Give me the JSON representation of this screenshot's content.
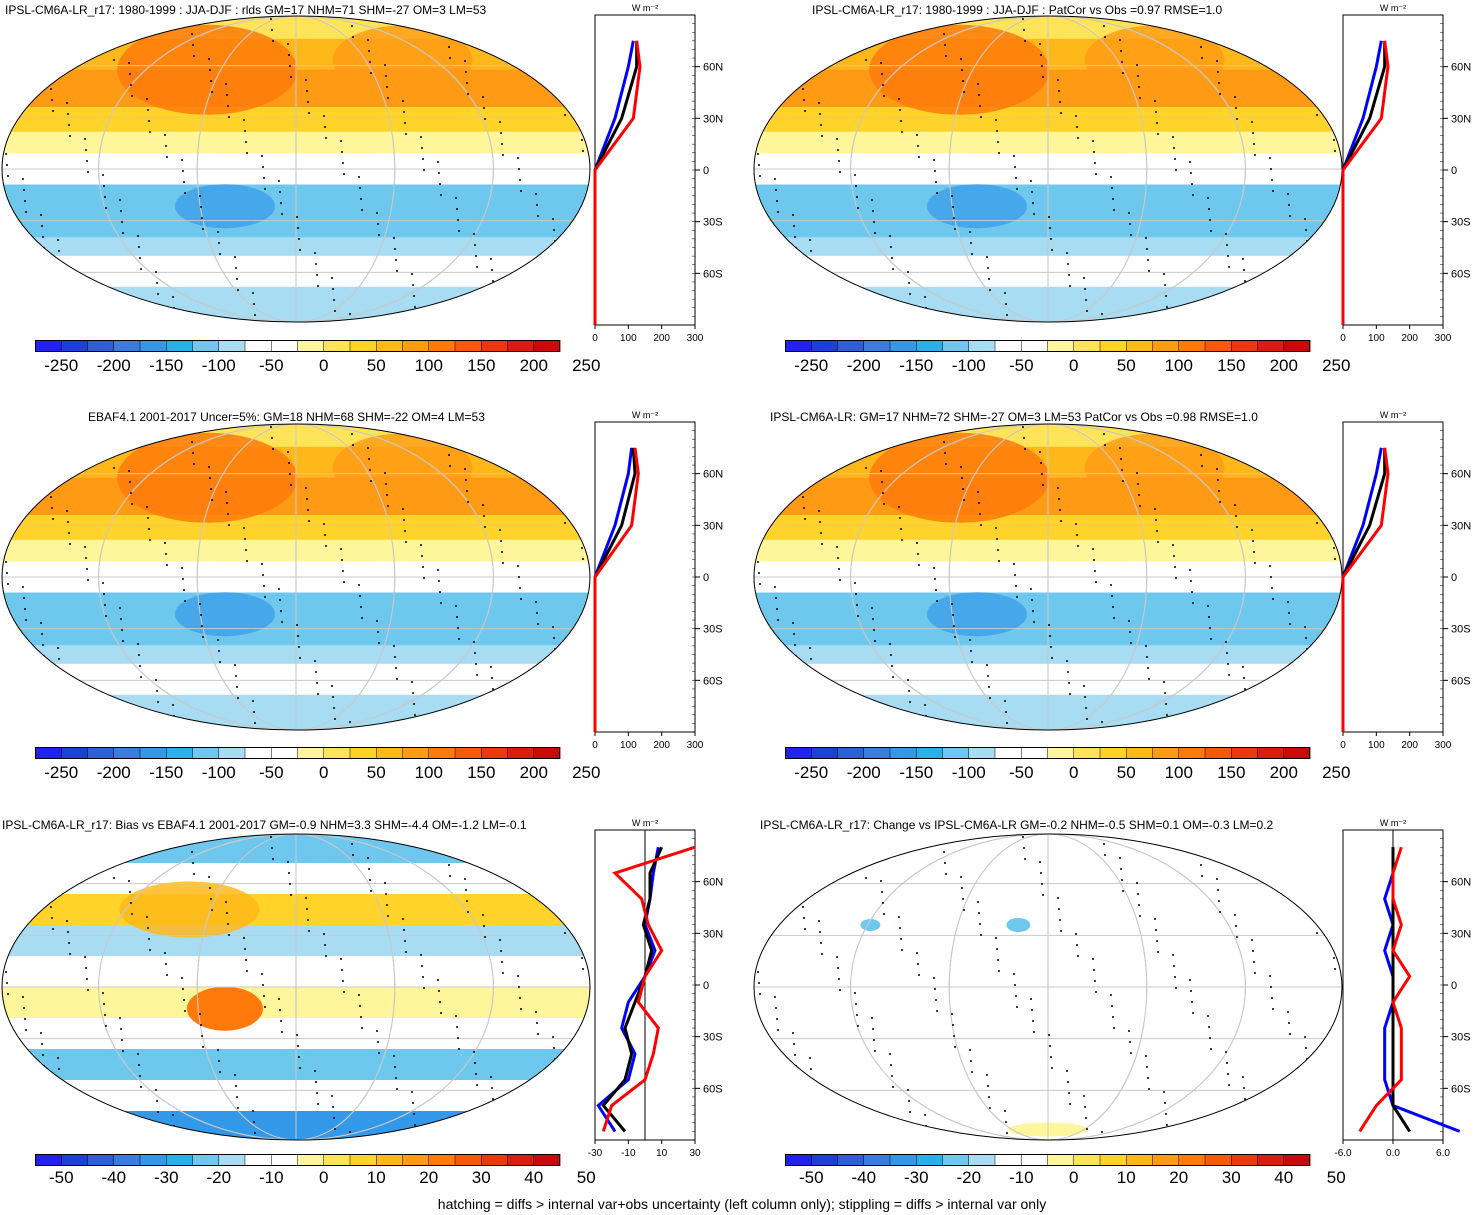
{
  "colors": {
    "lat_profile_lines": [
      "#0000ff",
      "#000000",
      "#ff0000"
    ],
    "map_outline": "#000000",
    "graticule": "#c8c8c8"
  },
  "colorbar": {
    "palette": [
      "#2222ee",
      "#1d3fd6",
      "#2e5fd9",
      "#3a7de0",
      "#3498e8",
      "#28b0ea",
      "#6ec8ee",
      "#a8dcf3",
      "#ffffff",
      "#ffffff",
      "#fff59a",
      "#ffe45a",
      "#ffd32a",
      "#ffb81a",
      "#ff9a14",
      "#ff7a0a",
      "#f55a08",
      "#e83a0c",
      "#d81e10",
      "#c80a0a"
    ],
    "labels_large": [
      "-250",
      "-200",
      "-150",
      "-100",
      "-50",
      "0",
      "50",
      "100",
      "150",
      "200",
      "250"
    ],
    "labels_small": [
      "-50",
      "-40",
      "-30",
      "-20",
      "-10",
      "0",
      "10",
      "20",
      "30",
      "40",
      "50"
    ]
  },
  "zonal_axis": {
    "unit": "W m⁻²",
    "lat_labels": [
      "60N",
      "30N",
      "0",
      "30S",
      "60S"
    ],
    "x_ticks_abs": [
      "0",
      "100",
      "200",
      "300"
    ],
    "x_ticks_bias": [
      "-30",
      "-10",
      "10",
      "30"
    ],
    "x_ticks_change": [
      "-6.0",
      "0.0",
      "6.0"
    ]
  },
  "panels": [
    {
      "id": "p1",
      "title": "IPSL-CM6A-LR_r17: 1980-1999 : JJA-DJF : rlds GM=17 NHM=71 SHM=-27 OM=3 LM=53"
    },
    {
      "id": "p2",
      "title": "IPSL-CM6A-LR_r17: 1980-1999 : JJA-DJF : PatCor vs Obs =0.97 RMSE=1.0"
    },
    {
      "id": "p3",
      "title": "EBAF4.1 2001-2017 Uncer=5%: GM=18 NHM=68 SHM=-22 OM=4 LM=53"
    },
    {
      "id": "p4",
      "title": "IPSL-CM6A-LR: GM=17 NHM=72 SHM=-27 OM=3 LM=53 PatCor vs Obs =0.98 RMSE=1.0"
    },
    {
      "id": "p5",
      "title": "IPSL-CM6A-LR_r17: Bias vs EBAF4.1 2001-2017 GM=-0.9 NHM=3.3 SHM=-4.4 OM=-1.2 LM=-0.1"
    },
    {
      "id": "p6",
      "title": "IPSL-CM6A-LR_r17: Change vs IPSL-CM6A-LR GM=-0.2 NHM=-0.5 SHM=0.1 OM=-0.3 LM=0.2"
    }
  ],
  "footnote": "hatching = diffs > internal var+obs uncertainty (left column only); stippling = diffs > internal var only",
  "chart_data": [
    {
      "type": "heatmap",
      "panel": "p1",
      "variable": "rlds",
      "season": "JJA-DJF",
      "period": "1980-1999",
      "colorbar": [
        -250,
        250
      ],
      "zonal_profile": {
        "xlim": [
          0,
          300
        ],
        "lat": [
          -90,
          -60,
          -30,
          0,
          30,
          60,
          75
        ],
        "series": [
          {
            "values": [
              0,
              0,
              0,
              0,
              60,
              100,
              115
            ]
          },
          {
            "values": [
              0,
              0,
              0,
              0,
              80,
              125,
              125
            ]
          },
          {
            "values": [
              0,
              0,
              0,
              0,
              115,
              135,
              125
            ]
          }
        ]
      }
    },
    {
      "type": "heatmap",
      "panel": "p2",
      "colorbar": [
        -250,
        250
      ],
      "zonal_profile": {
        "xlim": [
          0,
          300
        ],
        "lat": [
          -90,
          -60,
          -30,
          0,
          30,
          60,
          75
        ],
        "series": [
          {
            "values": [
              0,
              0,
              0,
              0,
              60,
              100,
              115
            ]
          },
          {
            "values": [
              0,
              0,
              0,
              0,
              80,
              125,
              125
            ]
          },
          {
            "values": [
              0,
              0,
              0,
              0,
              115,
              135,
              125
            ]
          }
        ]
      }
    },
    {
      "type": "heatmap",
      "panel": "p3",
      "colorbar": [
        -250,
        250
      ],
      "zonal_profile": {
        "xlim": [
          0,
          300
        ],
        "lat": [
          -90,
          -60,
          -30,
          0,
          30,
          60,
          75
        ],
        "series": [
          {
            "values": [
              0,
              0,
              0,
              0,
              60,
              100,
              110
            ]
          },
          {
            "values": [
              0,
              0,
              0,
              0,
              80,
              120,
              115
            ]
          },
          {
            "values": [
              0,
              0,
              0,
              0,
              110,
              130,
              120
            ]
          }
        ]
      }
    },
    {
      "type": "heatmap",
      "panel": "p4",
      "colorbar": [
        -250,
        250
      ],
      "zonal_profile": {
        "xlim": [
          0,
          300
        ],
        "lat": [
          -90,
          -60,
          -30,
          0,
          30,
          60,
          75
        ],
        "series": [
          {
            "values": [
              0,
              0,
              0,
              0,
              60,
              100,
              115
            ]
          },
          {
            "values": [
              0,
              0,
              0,
              0,
              80,
              125,
              125
            ]
          },
          {
            "values": [
              0,
              0,
              0,
              0,
              115,
              135,
              125
            ]
          }
        ]
      }
    },
    {
      "type": "heatmap",
      "panel": "p5",
      "colorbar": [
        -50,
        50
      ],
      "zonal_profile": {
        "xlim": [
          -30,
          30
        ],
        "lat": [
          -85,
          -70,
          -55,
          -40,
          -25,
          -10,
          5,
          20,
          35,
          50,
          65,
          80
        ],
        "series": [
          {
            "values": [
              -18,
              -28,
              -10,
              -6,
              -14,
              -10,
              0,
              6,
              0,
              3,
              5,
              8
            ]
          },
          {
            "values": [
              -12,
              -25,
              -12,
              -8,
              -12,
              -6,
              0,
              4,
              -1,
              3,
              3,
              10
            ]
          },
          {
            "values": [
              -25,
              -20,
              0,
              5,
              8,
              -4,
              0,
              10,
              2,
              -2,
              -18,
              30
            ]
          }
        ]
      }
    },
    {
      "type": "heatmap",
      "panel": "p6",
      "colorbar": [
        -50,
        50
      ],
      "zonal_profile": {
        "xlim": [
          -6,
          6
        ],
        "lat": [
          -85,
          -70,
          -55,
          -40,
          -25,
          -10,
          5,
          20,
          35,
          50,
          65,
          80
        ],
        "series": [
          {
            "values": [
              8,
              0,
              -1,
              -1,
              -1,
              0,
              0,
              -1,
              0,
              -1,
              0,
              0
            ]
          },
          {
            "values": [
              2,
              0,
              0,
              0,
              0,
              0,
              0,
              0,
              0,
              0,
              0,
              0
            ]
          },
          {
            "values": [
              -4,
              -2,
              1,
              1,
              1,
              0,
              2,
              0,
              1,
              0,
              0,
              1
            ]
          }
        ]
      }
    }
  ]
}
